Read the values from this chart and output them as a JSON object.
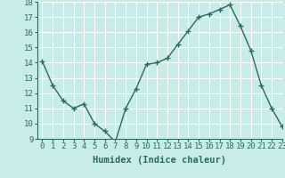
{
  "x": [
    0,
    1,
    2,
    3,
    4,
    5,
    6,
    7,
    8,
    9,
    10,
    11,
    12,
    13,
    14,
    15,
    16,
    17,
    18,
    19,
    20,
    21,
    22,
    23
  ],
  "y": [
    14.1,
    12.5,
    11.5,
    11.0,
    11.3,
    10.0,
    9.5,
    8.8,
    11.0,
    12.3,
    13.9,
    14.0,
    14.3,
    15.2,
    16.1,
    17.0,
    17.2,
    17.5,
    17.8,
    16.4,
    14.8,
    12.5,
    11.0,
    9.8
  ],
  "line_color": "#2e6b5e",
  "marker": "+",
  "marker_size": 4,
  "bg_color": "#c8ece8",
  "grid_color": "#ffffff",
  "xlabel": "Humidex (Indice chaleur)",
  "ylim": [
    9,
    18
  ],
  "xlim": [
    -0.5,
    23
  ],
  "yticks": [
    9,
    10,
    11,
    12,
    13,
    14,
    15,
    16,
    17,
    18
  ],
  "xticks": [
    0,
    1,
    2,
    3,
    4,
    5,
    6,
    7,
    8,
    9,
    10,
    11,
    12,
    13,
    14,
    15,
    16,
    17,
    18,
    19,
    20,
    21,
    22,
    23
  ],
  "tick_color": "#2e6b5e",
  "label_fontsize": 6.5,
  "axis_label_fontsize": 7.5
}
